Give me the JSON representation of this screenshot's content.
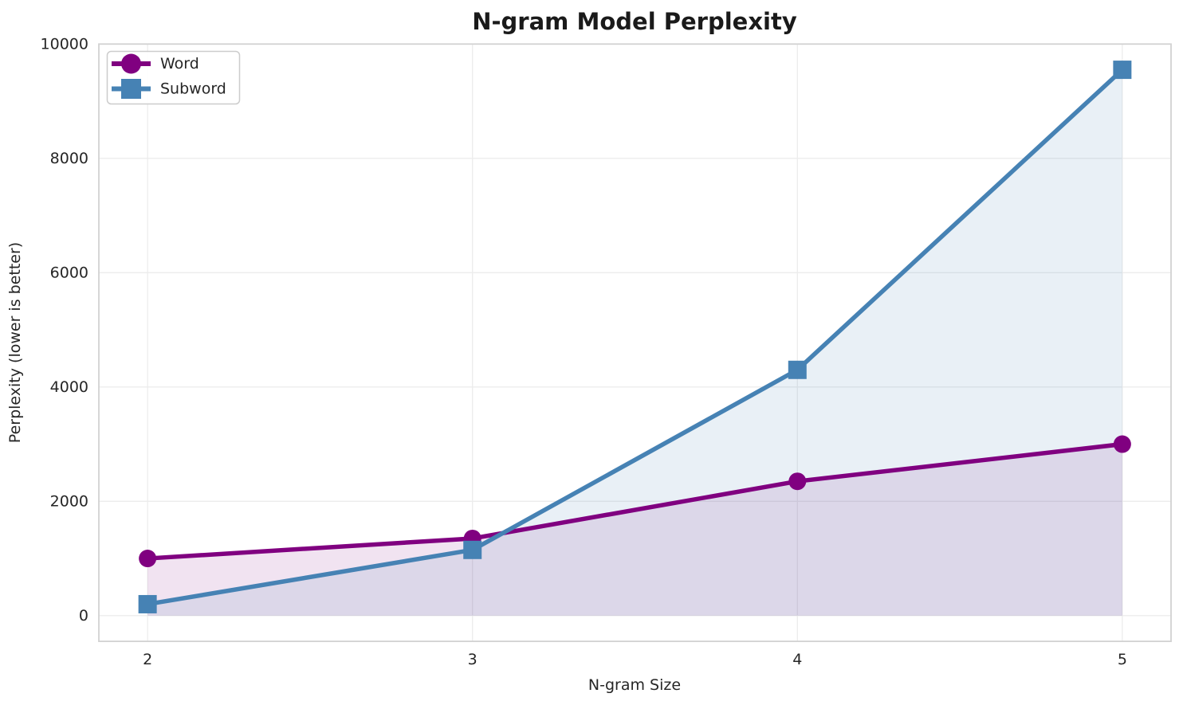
{
  "chart_data": {
    "type": "line",
    "title": "N-gram Model Perplexity",
    "xlabel": "N-gram Size",
    "ylabel": "Perplexity (lower is better)",
    "x": [
      2,
      3,
      4,
      5
    ],
    "series": [
      {
        "name": "Word",
        "values": [
          1000,
          1350,
          2350,
          3000
        ],
        "color": "#800080",
        "marker": "circle",
        "fill_opacity": 0.11
      },
      {
        "name": "Subword",
        "values": [
          200,
          1150,
          4300,
          9550
        ],
        "color": "#4682B4",
        "marker": "square",
        "fill_opacity": 0.12
      }
    ],
    "xticks": [
      2,
      3,
      4,
      5
    ],
    "yticks": [
      0,
      2000,
      4000,
      6000,
      8000,
      10000
    ],
    "xlim": [
      1.85,
      5.15
    ],
    "ylim": [
      -450,
      10000
    ],
    "grid": true,
    "area_fill": true,
    "legend": {
      "position": "upper left",
      "entries": [
        "Word",
        "Subword"
      ]
    },
    "colors": {
      "grid": "#ececec",
      "spine": "#d2d2d2",
      "text": "#262626",
      "title": "#1a1a1a",
      "legend_border": "#cccccc",
      "background": "#ffffff"
    }
  }
}
